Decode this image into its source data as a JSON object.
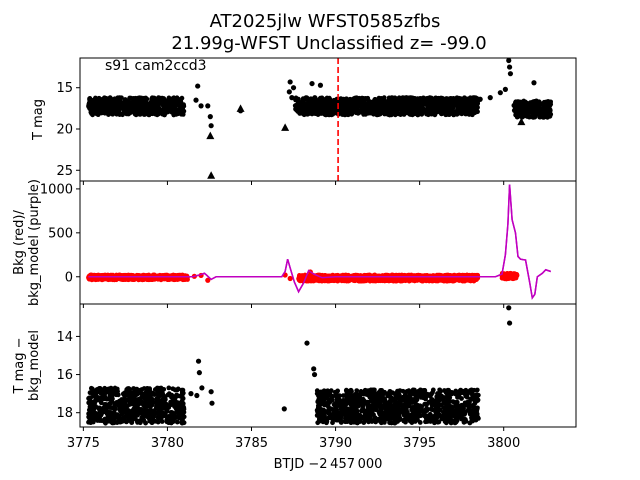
{
  "figure": {
    "title_line1": "AT2025jlw  WFST0585zfbs",
    "title_line2": "21.99g-WFST Unclassified z= -99.0",
    "xlabel": "BTJD −2 457 000",
    "x_ticks": [
      "3775",
      "3780",
      "3785",
      "3790",
      "3795",
      "3800"
    ]
  },
  "chart_data": [
    {
      "type": "scatter",
      "panel": "top",
      "annotation": "s91 cam2ccd3",
      "ylabel": "T mag",
      "y_inverted": true,
      "xlim": [
        3774.8,
        3804.3
      ],
      "ylim": [
        26.3,
        11.4
      ],
      "y_ticks": [
        15,
        20,
        25
      ],
      "grid": false,
      "reference_line": {
        "x": 3790.15,
        "style": "dashed",
        "color": "#ff0000"
      },
      "band_segments": [
        {
          "x": [
            3775.3,
            3781.0
          ],
          "y_range": [
            16.2,
            18.3
          ],
          "color": "#000000"
        },
        {
          "x": [
            3787.6,
            3798.5
          ],
          "y_range": [
            16.2,
            18.3
          ],
          "color": "#000000"
        },
        {
          "x": [
            3800.6,
            3802.8
          ],
          "y_range": [
            16.6,
            18.6
          ],
          "color": "#000000"
        }
      ],
      "points": [
        {
          "x": 3781.7,
          "y": 16.5
        },
        {
          "x": 3781.8,
          "y": 14.8
        },
        {
          "x": 3782.0,
          "y": 17.2
        },
        {
          "x": 3782.4,
          "y": 17.2
        },
        {
          "x": 3782.55,
          "y": 18.5
        },
        {
          "x": 3782.6,
          "y": 19.6
        },
        {
          "x": 3784.35,
          "y": 17.8
        },
        {
          "x": 3787.25,
          "y": 15.5
        },
        {
          "x": 3787.3,
          "y": 14.3
        },
        {
          "x": 3787.4,
          "y": 16.2
        },
        {
          "x": 3787.5,
          "y": 15.0
        },
        {
          "x": 3788.6,
          "y": 14.5
        },
        {
          "x": 3789.1,
          "y": 14.7
        },
        {
          "x": 3798.6,
          "y": 16.4
        },
        {
          "x": 3799.2,
          "y": 16.2
        },
        {
          "x": 3799.8,
          "y": 15.6
        },
        {
          "x": 3800.1,
          "y": 15.2
        },
        {
          "x": 3800.3,
          "y": 11.7
        },
        {
          "x": 3800.35,
          "y": 12.5
        },
        {
          "x": 3800.4,
          "y": 13.3
        },
        {
          "x": 3801.8,
          "y": 14.4
        }
      ],
      "triangles": [
        {
          "x": 3782.6,
          "y": 25.6
        },
        {
          "x": 3782.55,
          "y": 20.8
        },
        {
          "x": 3784.35,
          "y": 17.5
        },
        {
          "x": 3787.0,
          "y": 19.8
        },
        {
          "x": 3801.05,
          "y": 19.1
        }
      ]
    },
    {
      "type": "line",
      "panel": "middle",
      "ylabel": "Bkg (red)/\nbkg_model (purple)",
      "xlim": [
        3774.8,
        3804.3
      ],
      "ylim": [
        -310,
        1090
      ],
      "y_ticks": [
        0,
        500,
        1000
      ],
      "grid": false,
      "series": [
        {
          "color": "#c000c0",
          "x": [
            3775.3,
            3781.5,
            3782.0,
            3782.2,
            3782.35,
            3782.6,
            3782.9,
            3786.8,
            3787.0,
            3787.15,
            3787.3,
            3787.55,
            3787.8,
            3788.1,
            3788.4,
            3788.7,
            3789.2,
            3790.0,
            3799.5,
            3799.9,
            3800.1,
            3800.25,
            3800.35,
            3800.5,
            3800.7,
            3800.85,
            3801.0,
            3801.3,
            3801.55,
            3801.7,
            3801.85,
            3802.0,
            3802.3,
            3802.5,
            3802.8
          ],
          "y": [
            0,
            0,
            25,
            40,
            15,
            -30,
            0,
            0,
            60,
            200,
            100,
            -60,
            -170,
            -70,
            70,
            30,
            -10,
            0,
            0,
            30,
            250,
            600,
            1050,
            650,
            500,
            230,
            200,
            190,
            -70,
            -240,
            -200,
            0,
            40,
            80,
            60
          ]
        },
        {
          "color": "#ff0000",
          "marker": "dot",
          "band_segments": [
            {
              "x": [
                3775.3,
                3781.2
              ],
              "y_range": [
                -35,
                20
              ]
            },
            {
              "x": [
                3787.8,
                3798.5
              ],
              "y_range": [
                -50,
                20
              ]
            },
            {
              "x": [
                3799.9,
                3800.8
              ],
              "y_range": [
                -25,
                40
              ]
            }
          ],
          "points": [
            {
              "x": 3781.6,
              "y": 5
            },
            {
              "x": 3782.0,
              "y": 15
            },
            {
              "x": 3782.4,
              "y": -40
            },
            {
              "x": 3787.0,
              "y": 20
            },
            {
              "x": 3787.3,
              "y": -20
            },
            {
              "x": 3788.5,
              "y": 55
            }
          ]
        }
      ]
    },
    {
      "type": "scatter",
      "panel": "bottom",
      "ylabel": "T mag −\nbkg_model",
      "y_inverted": true,
      "xlim": [
        3774.8,
        3804.3
      ],
      "ylim": [
        18.75,
        12.3
      ],
      "y_ticks": [
        14,
        16,
        18
      ],
      "grid": false,
      "band_segments": [
        {
          "x": [
            3775.3,
            3781.0
          ],
          "y_range": [
            16.7,
            18.55
          ],
          "color": "#000000"
        },
        {
          "x": [
            3788.9,
            3798.5
          ],
          "y_range": [
            16.8,
            18.55
          ],
          "color": "#000000"
        }
      ],
      "points": [
        {
          "x": 3781.4,
          "y": 17.0
        },
        {
          "x": 3781.75,
          "y": 17.1
        },
        {
          "x": 3781.85,
          "y": 15.3
        },
        {
          "x": 3781.9,
          "y": 15.9
        },
        {
          "x": 3782.05,
          "y": 16.7
        },
        {
          "x": 3782.6,
          "y": 16.9
        },
        {
          "x": 3782.65,
          "y": 17.5
        },
        {
          "x": 3786.95,
          "y": 17.8
        },
        {
          "x": 3788.3,
          "y": 14.35
        },
        {
          "x": 3788.7,
          "y": 15.7
        },
        {
          "x": 3788.75,
          "y": 16.0
        },
        {
          "x": 3800.3,
          "y": 12.5
        },
        {
          "x": 3800.35,
          "y": 13.3
        }
      ]
    }
  ]
}
